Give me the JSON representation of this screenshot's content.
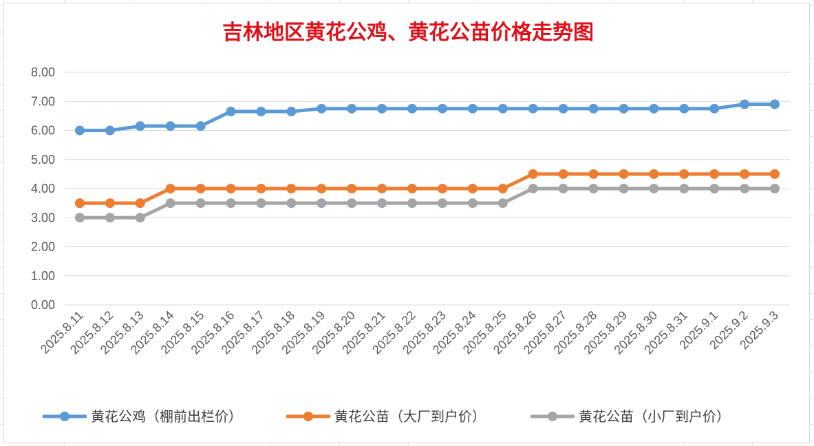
{
  "chart_data": {
    "type": "line",
    "title": "吉林地区黄花公鸡、黄花公苗价格走势图",
    "xlabel": "",
    "ylabel": "",
    "ylim": [
      0,
      8
    ],
    "yticks": [
      "0.00",
      "1.00",
      "2.00",
      "3.00",
      "4.00",
      "5.00",
      "6.00",
      "7.00",
      "8.00"
    ],
    "grid": true,
    "legend_position": "bottom",
    "categories": [
      "2025.8.11",
      "2025.8.12",
      "2025.8.13",
      "2025.8.14",
      "2025.8.15",
      "2025.8.16",
      "2025.8.17",
      "2025.8.18",
      "2025.8.19",
      "2025.8.20",
      "2025.8.21",
      "2025.8.22",
      "2025.8.23",
      "2025.8.24",
      "2025.8.25",
      "2025.8.26",
      "2025.8.27",
      "2025.8.28",
      "2025.8.29",
      "2025.8.30",
      "2025.8.31",
      "2025.9.1",
      "2025.9.2",
      "2025.9.3"
    ],
    "series": [
      {
        "name": "黄花公鸡（棚前出栏价）",
        "color": "#5b9bd5",
        "values": [
          6.0,
          6.0,
          6.15,
          6.15,
          6.15,
          6.65,
          6.65,
          6.65,
          6.75,
          6.75,
          6.75,
          6.75,
          6.75,
          6.75,
          6.75,
          6.75,
          6.75,
          6.75,
          6.75,
          6.75,
          6.75,
          6.75,
          6.9,
          6.9
        ]
      },
      {
        "name": "黄花公苗（大厂到户价）",
        "color": "#ed7d31",
        "values": [
          3.5,
          3.5,
          3.5,
          4.0,
          4.0,
          4.0,
          4.0,
          4.0,
          4.0,
          4.0,
          4.0,
          4.0,
          4.0,
          4.0,
          4.0,
          4.5,
          4.5,
          4.5,
          4.5,
          4.5,
          4.5,
          4.5,
          4.5,
          4.5
        ]
      },
      {
        "name": "黄花公苗（小厂到户价）",
        "color": "#a5a5a5",
        "values": [
          3.0,
          3.0,
          3.0,
          3.5,
          3.5,
          3.5,
          3.5,
          3.5,
          3.5,
          3.5,
          3.5,
          3.5,
          3.5,
          3.5,
          3.5,
          4.0,
          4.0,
          4.0,
          4.0,
          4.0,
          4.0,
          4.0,
          4.0,
          4.0
        ]
      }
    ]
  }
}
